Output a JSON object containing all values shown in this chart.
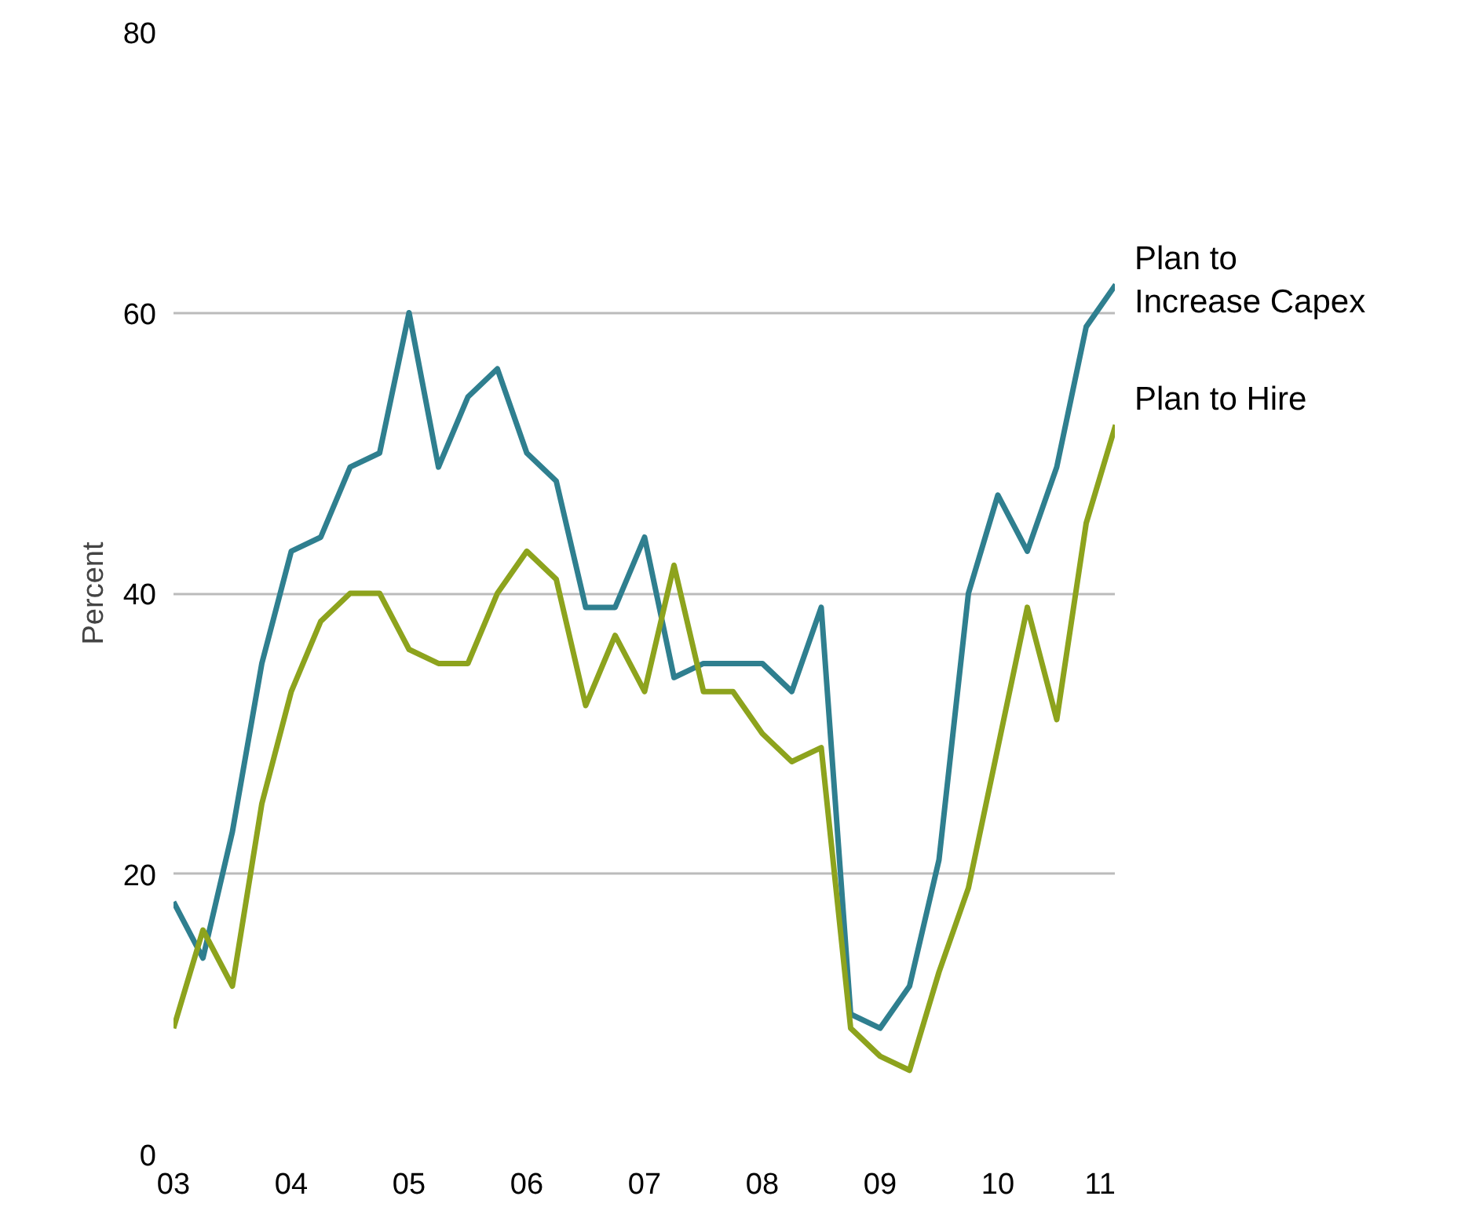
{
  "chart_data": {
    "type": "line",
    "ylabel": "Percent",
    "x": [
      2003,
      2003.25,
      2003.5,
      2003.75,
      2004,
      2004.25,
      2004.5,
      2004.75,
      2005,
      2005.25,
      2005.5,
      2005.75,
      2006,
      2006.25,
      2006.5,
      2006.75,
      2007,
      2007.25,
      2007.5,
      2007.75,
      2008,
      2008.25,
      2008.5,
      2008.75,
      2009,
      2009.25,
      2009.5,
      2009.75,
      2010,
      2010.25,
      2010.5,
      2010.75,
      2011
    ],
    "series": [
      {
        "name": "Plan to Increase Capex",
        "color": "#2f7f8f",
        "values": [
          18,
          14,
          23,
          35,
          43,
          44,
          49,
          50,
          60,
          49,
          54,
          56,
          50,
          48,
          39,
          39,
          44,
          34,
          35,
          35,
          35,
          33,
          39,
          10,
          9,
          12,
          21,
          40,
          47,
          43,
          49,
          59,
          62
        ]
      },
      {
        "name": "Plan to Hire",
        "color": "#8da31d",
        "values": [
          9,
          16,
          12,
          25,
          33,
          38,
          40,
          40,
          36,
          35,
          35,
          40,
          43,
          41,
          32,
          37,
          33,
          42,
          33,
          33,
          30,
          28,
          29,
          9,
          7,
          6,
          13,
          19,
          29,
          39,
          31,
          45,
          52
        ]
      }
    ],
    "xlim": [
      2003,
      2011
    ],
    "xticks": [
      {
        "value": 2003,
        "label": "03"
      },
      {
        "value": 2004,
        "label": "04"
      },
      {
        "value": 2005,
        "label": "05"
      },
      {
        "value": 2006,
        "label": "06"
      },
      {
        "value": 2007,
        "label": "07"
      },
      {
        "value": 2008,
        "label": "08"
      },
      {
        "value": 2009,
        "label": "09"
      },
      {
        "value": 2010,
        "label": "10"
      },
      {
        "value": 2011,
        "label": "11"
      }
    ],
    "ylim": [
      0,
      80
    ],
    "yticks": [
      0,
      20,
      40,
      60,
      80
    ],
    "grid": "y",
    "legend": false,
    "line_style": "solid",
    "marker": "none"
  }
}
